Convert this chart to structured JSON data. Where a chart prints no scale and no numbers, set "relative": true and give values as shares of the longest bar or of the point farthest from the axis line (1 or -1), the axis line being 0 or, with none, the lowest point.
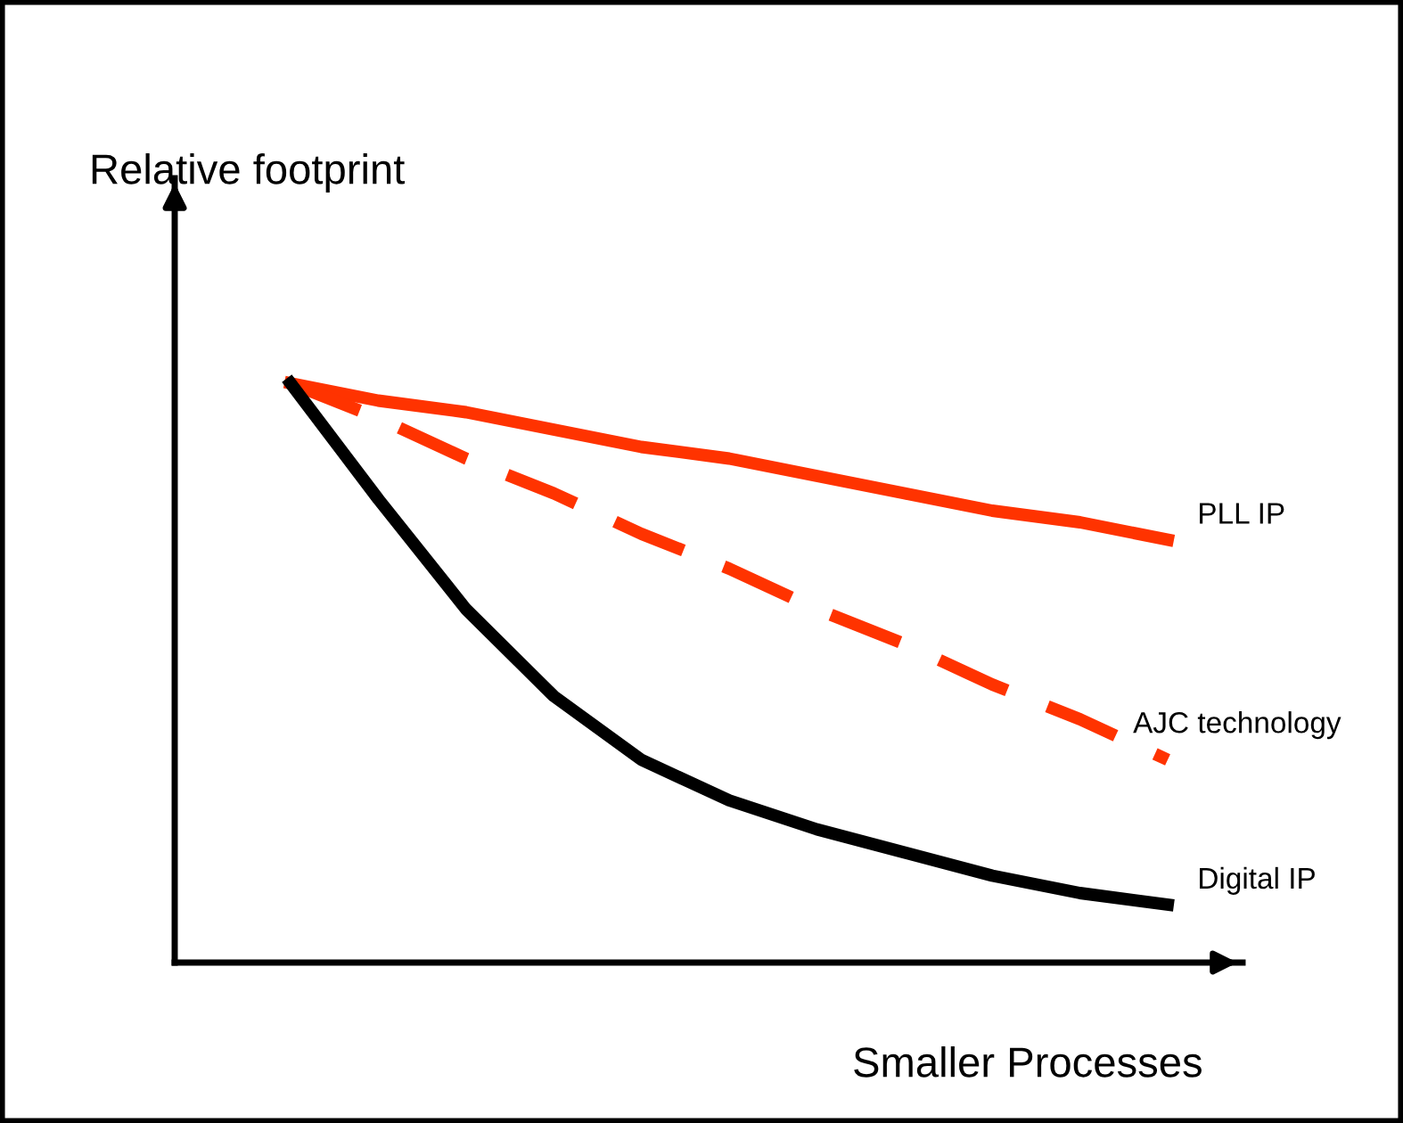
{
  "chart_data": {
    "type": "line",
    "relative": true,
    "xlabel": "Smaller Processes",
    "ylabel": "Relative footprint",
    "categories": [
      null,
      null,
      null,
      null,
      null,
      null,
      null,
      null,
      null,
      null,
      null
    ],
    "series": [
      {
        "name": "PLL IP",
        "color": "#ff3300",
        "line_style": "solid",
        "values": [
          1.0,
          0.97,
          0.95,
          0.92,
          0.89,
          0.87,
          0.84,
          0.81,
          0.78,
          0.76,
          0.73
        ]
      },
      {
        "name": "AJC technology",
        "color": "#ff3300",
        "line_style": "dashed",
        "values": [
          1.0,
          0.94,
          0.87,
          0.81,
          0.74,
          0.68,
          0.61,
          0.55,
          0.48,
          0.42,
          0.35
        ]
      },
      {
        "name": "Digital IP",
        "color": "#000000",
        "line_style": "solid",
        "values": [
          1.0,
          0.8,
          0.61,
          0.46,
          0.35,
          0.28,
          0.23,
          0.19,
          0.15,
          0.12,
          0.1
        ]
      }
    ],
    "legend": false,
    "marker": "none"
  }
}
